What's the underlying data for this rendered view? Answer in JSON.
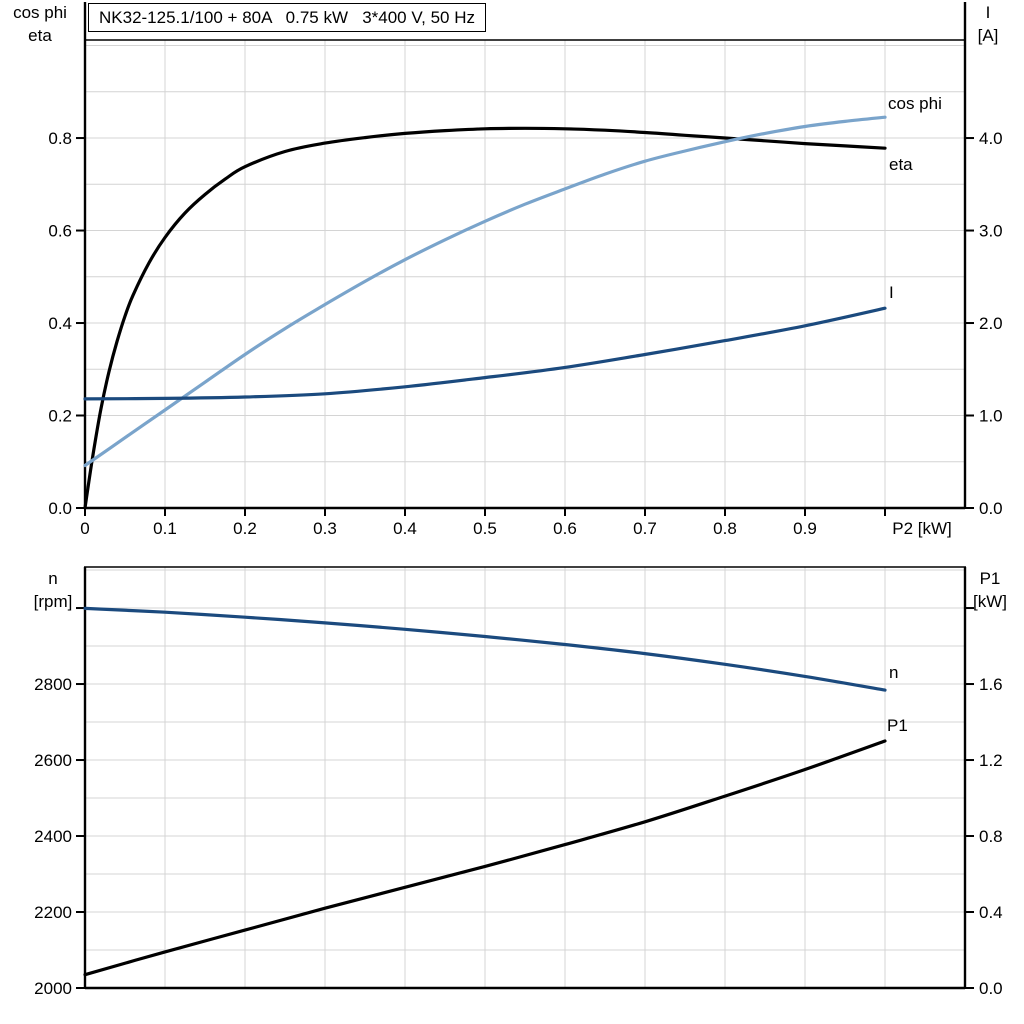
{
  "title_box": {
    "text": "NK32-125.1/100 + 80A   0.75 kW   3*400 V, 50 Hz"
  },
  "colors": {
    "black": "#000000",
    "light_blue": "#7aa4cb",
    "dark_blue": "#1b4a7e",
    "grid": "#d4d4d4",
    "axis": "#000000"
  },
  "chart_data": [
    {
      "type": "line",
      "id": "top-chart-electrical",
      "title": "cos phi / eta / I versus P2",
      "legend_position": "end-of-curve-labels",
      "grid": true,
      "x_axis": {
        "label": "P2 [kW]",
        "min": 0,
        "max": 1.1,
        "grid_step": 0.1,
        "ticks": [
          {
            "v": 0.0,
            "t": "0"
          },
          {
            "v": 0.1,
            "t": "0.1"
          },
          {
            "v": 0.2,
            "t": "0.2"
          },
          {
            "v": 0.3,
            "t": "0.3"
          },
          {
            "v": 0.4,
            "t": "0.4"
          },
          {
            "v": 0.5,
            "t": "0.5"
          },
          {
            "v": 0.6,
            "t": "0.6"
          },
          {
            "v": 0.7,
            "t": "0.7"
          },
          {
            "v": 0.8,
            "t": "0.8"
          },
          {
            "v": 0.9,
            "t": "0.9"
          },
          {
            "v": 1.0,
            "t": ""
          }
        ]
      },
      "y_left": {
        "label_lines": [
          "cos phi",
          "eta"
        ],
        "min": 0,
        "max": 1.012,
        "grid_step": 0.1,
        "ticks": [
          {
            "v": 0.0,
            "t": "0.0"
          },
          {
            "v": 0.2,
            "t": "0.2"
          },
          {
            "v": 0.4,
            "t": "0.4"
          },
          {
            "v": 0.6,
            "t": "0.6"
          },
          {
            "v": 0.8,
            "t": "0.8"
          }
        ]
      },
      "y_right": {
        "label_lines": [
          "I",
          "[A]"
        ],
        "min": 0,
        "max": 5.06,
        "ticks": [
          {
            "v": 0.0,
            "t": "0.0"
          },
          {
            "v": 1.0,
            "t": "1.0"
          },
          {
            "v": 2.0,
            "t": "2.0"
          },
          {
            "v": 3.0,
            "t": "3.0"
          },
          {
            "v": 4.0,
            "t": "4.0"
          }
        ]
      },
      "series": [
        {
          "name": "eta",
          "axis": "left",
          "color": "black",
          "x": [
            0,
            0.01,
            0.02,
            0.03,
            0.04,
            0.05,
            0.06,
            0.08,
            0.1,
            0.125,
            0.15,
            0.175,
            0.2,
            0.25,
            0.3,
            0.35,
            0.4,
            0.45,
            0.5,
            0.55,
            0.6,
            0.65,
            0.7,
            0.75,
            0.8,
            0.85,
            0.9,
            0.95,
            1.0
          ],
          "y": [
            0,
            0.115,
            0.215,
            0.295,
            0.36,
            0.415,
            0.46,
            0.53,
            0.585,
            0.638,
            0.678,
            0.711,
            0.738,
            0.771,
            0.789,
            0.801,
            0.81,
            0.816,
            0.82,
            0.821,
            0.82,
            0.817,
            0.812,
            0.806,
            0.8,
            0.794,
            0.788,
            0.783,
            0.778
          ]
        },
        {
          "name": "cos phi",
          "axis": "left",
          "color": "light_blue",
          "x": [
            0,
            0.05,
            0.1,
            0.15,
            0.2,
            0.25,
            0.3,
            0.35,
            0.4,
            0.45,
            0.5,
            0.55,
            0.6,
            0.65,
            0.7,
            0.75,
            0.8,
            0.85,
            0.9,
            0.95,
            1.0
          ],
          "y": [
            0.092,
            0.152,
            0.212,
            0.272,
            0.332,
            0.388,
            0.44,
            0.49,
            0.537,
            0.58,
            0.62,
            0.657,
            0.69,
            0.722,
            0.75,
            0.772,
            0.792,
            0.81,
            0.825,
            0.836,
            0.845
          ]
        },
        {
          "name": "I",
          "axis": "right",
          "color": "dark_blue",
          "x": [
            0,
            0.1,
            0.2,
            0.3,
            0.4,
            0.5,
            0.6,
            0.7,
            0.8,
            0.9,
            1.0
          ],
          "y": [
            1.18,
            1.185,
            1.2,
            1.235,
            1.31,
            1.41,
            1.52,
            1.66,
            1.81,
            1.97,
            2.16
          ]
        }
      ]
    },
    {
      "type": "line",
      "id": "bottom-chart-mechanical",
      "title": "n / P1 versus P2",
      "legend_position": "end-of-curve-labels",
      "grid": true,
      "x_axis": {
        "label": "",
        "min": 0,
        "max": 1.1,
        "grid_step": 0.1,
        "ticks": []
      },
      "y_left": {
        "label_lines": [
          "n",
          "[rpm]"
        ],
        "min": 2000,
        "max": 3108,
        "grid_step": 100,
        "ticks": [
          {
            "v": 3000,
            "t": ""
          },
          {
            "v": 2800,
            "t": "2800"
          },
          {
            "v": 2600,
            "t": "2600"
          },
          {
            "v": 2400,
            "t": "2400"
          },
          {
            "v": 2200,
            "t": "2200"
          },
          {
            "v": 2000,
            "t": "2000"
          }
        ]
      },
      "y_right": {
        "label_lines": [
          "P1",
          "[kW]"
        ],
        "min": 0,
        "max": 2.216,
        "grid_step": 0.2,
        "ticks": [
          {
            "v": 2.0,
            "t": ""
          },
          {
            "v": 1.6,
            "t": "1.6"
          },
          {
            "v": 1.2,
            "t": "1.2"
          },
          {
            "v": 0.8,
            "t": "0.8"
          },
          {
            "v": 0.4,
            "t": "0.4"
          },
          {
            "v": 0.0,
            "t": "0.0"
          }
        ]
      },
      "series": [
        {
          "name": "n",
          "axis": "left",
          "color": "dark_blue",
          "x": [
            0,
            0.1,
            0.2,
            0.3,
            0.4,
            0.5,
            0.6,
            0.7,
            0.8,
            0.9,
            1.0
          ],
          "y": [
            2999,
            2989,
            2976,
            2961,
            2944,
            2925,
            2904,
            2880,
            2852,
            2820,
            2784
          ]
        },
        {
          "name": "P1",
          "axis": "right",
          "color": "black",
          "x": [
            0,
            0.1,
            0.2,
            0.3,
            0.4,
            0.5,
            0.6,
            0.7,
            0.8,
            0.9,
            1.0
          ],
          "y": [
            0.07,
            0.19,
            0.305,
            0.42,
            0.53,
            0.64,
            0.755,
            0.875,
            1.01,
            1.15,
            1.3
          ]
        }
      ]
    }
  ]
}
